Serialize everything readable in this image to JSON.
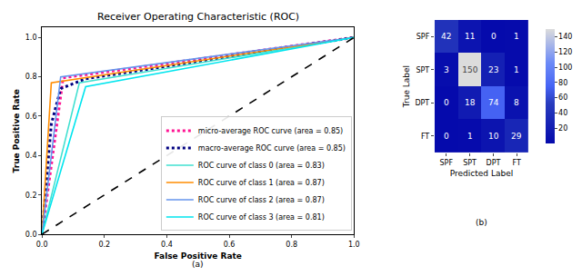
{
  "chart_data": [
    {
      "type": "line",
      "title": "Receiver Operating Characteristic (ROC)",
      "annotation": "(a)",
      "x_label": "False Positive Rate",
      "y_label": "True Positive Rate",
      "xlim": [
        0,
        1
      ],
      "ylim": [
        0,
        1.05
      ],
      "xticks": [
        {
          "value": 0,
          "label": "0.0"
        },
        {
          "value": 0.2,
          "label": "0.2"
        },
        {
          "value": 0.4,
          "label": "0.4"
        },
        {
          "value": 0.6,
          "label": "0.6"
        },
        {
          "value": 0.8,
          "label": "0.8"
        },
        {
          "value": 1,
          "label": "1.0"
        }
      ],
      "yticks": [
        {
          "value": 0,
          "label": "0.0"
        },
        {
          "value": 0.2,
          "label": "0.2"
        },
        {
          "value": 0.4,
          "label": "0.4"
        },
        {
          "value": 0.6,
          "label": "0.6"
        },
        {
          "value": 0.8,
          "label": "0.8"
        },
        {
          "value": 1,
          "label": "1.0"
        }
      ],
      "legend": "lower right",
      "series": [
        {
          "name": "micro-average ROC curve (area = 0.85)",
          "color": "#ff1493",
          "line_style": "dotted",
          "x": [
            0,
            0.068,
            1
          ],
          "values": [
            0,
            0.795,
            1
          ]
        },
        {
          "name": "macro-average ROC curve (area = 0.85)",
          "color": "#000080",
          "line_style": "dotted",
          "x": [
            0,
            0.03,
            0.06,
            0.12,
            0.14,
            1
          ],
          "values": [
            0,
            0.56,
            0.74,
            0.78,
            0.79,
            1
          ]
        },
        {
          "name": "ROC curve of class 0 (area = 0.83)",
          "color": "#40e0d0",
          "line_style": "solid",
          "x": [
            0,
            0.12,
            1
          ],
          "values": [
            0,
            0.77,
            1
          ]
        },
        {
          "name": "ROC curve of class 1 (area = 0.87)",
          "color": "#ff8c00",
          "line_style": "solid",
          "x": [
            0,
            0.03,
            1
          ],
          "values": [
            0,
            0.77,
            1
          ]
        },
        {
          "name": "ROC curve of class 2 (area = 0.87)",
          "color": "#6495ed",
          "line_style": "solid",
          "x": [
            0,
            0.06,
            1
          ],
          "values": [
            0,
            0.8,
            1
          ]
        },
        {
          "name": "ROC curve of class 3 (area = 0.81)",
          "color": "#00e5ee",
          "line_style": "solid",
          "x": [
            0,
            0.14,
            1
          ],
          "values": [
            0,
            0.75,
            1
          ]
        },
        {
          "color": "#000000",
          "line_style": "dashed",
          "x": [
            0,
            1
          ],
          "values": [
            0,
            1
          ]
        }
      ]
    },
    {
      "type": "heatmap",
      "annotation": "(b)",
      "x_label": "Predicted Label",
      "y_label": "True Label",
      "categories": [
        "SPF",
        "SPT",
        "DPT",
        "FT"
      ],
      "y_categories": [
        "SPF",
        "SPT",
        "DPT",
        "FT"
      ],
      "cells": [
        [
          42,
          11,
          0,
          1
        ],
        [
          3,
          150,
          23,
          1
        ],
        [
          0,
          18,
          74,
          8
        ],
        [
          0,
          1,
          10,
          29
        ]
      ],
      "colorbar_range": [
        0,
        150
      ],
      "colorbar_ticks": [
        20,
        40,
        60,
        80,
        100,
        120,
        140
      ],
      "data_labels": true
    }
  ]
}
